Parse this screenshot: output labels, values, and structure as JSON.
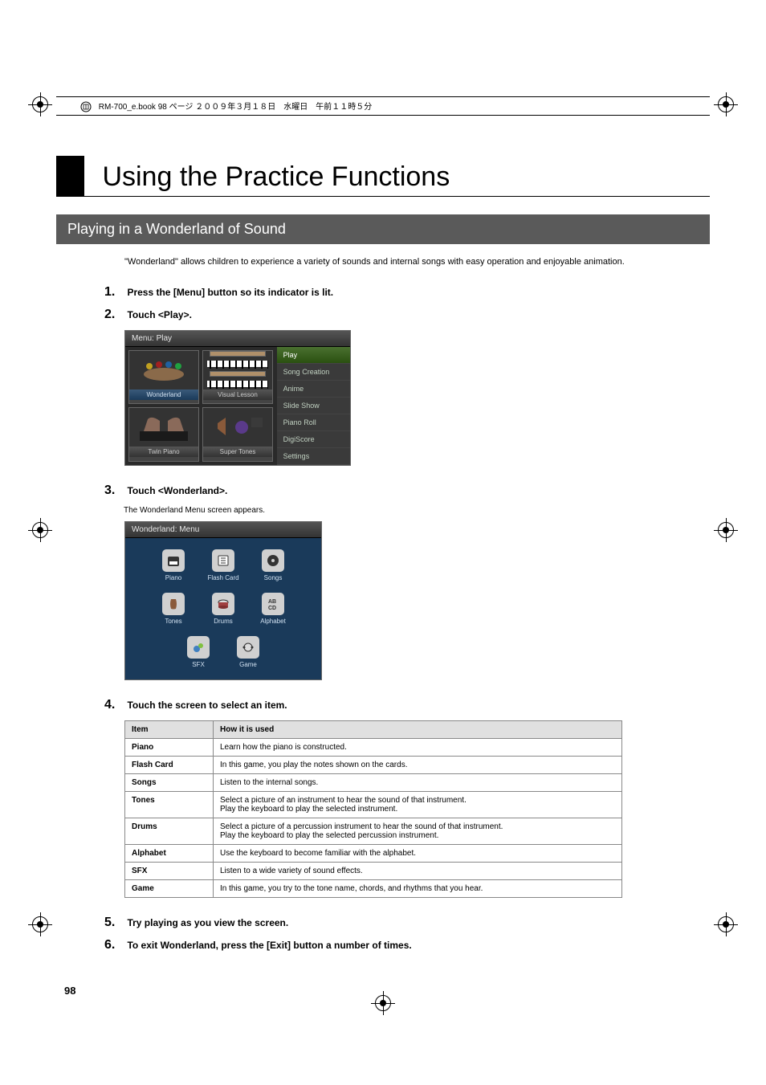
{
  "header": {
    "text": "RM-700_e.book  98 ページ  ２００９年３月１８日　水曜日　午前１１時５分"
  },
  "title": "Using the Practice Functions",
  "section": "Playing in a Wonderland of Sound",
  "intro": "\"Wonderland\" allows children to experience a variety of sounds and internal songs with easy operation and enjoyable animation.",
  "steps": [
    {
      "num": "1.",
      "text": "Press the [Menu] button so its indicator is lit."
    },
    {
      "num": "2.",
      "text": "Touch <Play>."
    },
    {
      "num": "3.",
      "text": "Touch <Wonderland>.",
      "sub": "The Wonderland Menu screen appears."
    },
    {
      "num": "4.",
      "text": "Touch the screen to select an item."
    },
    {
      "num": "5.",
      "text": "Try playing as you view the screen."
    },
    {
      "num": "6.",
      "text": "To exit Wonderland, press the [Exit] button a number of times."
    }
  ],
  "menu_play": {
    "title": "Menu: Play",
    "tiles": [
      {
        "label": "Wonderland",
        "class": "blue"
      },
      {
        "label": "Visual Lesson",
        "class": "grey"
      },
      {
        "label": "Twin Piano",
        "class": "grey"
      },
      {
        "label": "Super Tones",
        "class": "grey"
      }
    ],
    "sidebar": [
      {
        "label": "Play",
        "selected": true
      },
      {
        "label": "Song Creation",
        "selected": false
      },
      {
        "label": "Anime",
        "selected": false
      },
      {
        "label": "Slide Show",
        "selected": false
      },
      {
        "label": "Piano Roll",
        "selected": false
      },
      {
        "label": "DigiScore",
        "selected": false
      },
      {
        "label": "Settings",
        "selected": false
      }
    ]
  },
  "wonderland": {
    "title": "Wonderland: Menu",
    "items": [
      "Piano",
      "Flash Card",
      "Songs",
      "Tones",
      "Drums",
      "Alphabet",
      "SFX",
      "Game"
    ]
  },
  "table": {
    "headers": [
      "Item",
      "How it is used"
    ],
    "rows": [
      [
        "Piano",
        "Learn how the piano is constructed."
      ],
      [
        "Flash Card",
        "In this game, you play the notes shown on the cards."
      ],
      [
        "Songs",
        "Listen to the internal songs."
      ],
      [
        "Tones",
        "Select a picture of an instrument to hear the sound of that instrument.\nPlay the keyboard to play the selected instrument."
      ],
      [
        "Drums",
        "Select a picture of a percussion instrument to hear the sound of that instrument.\nPlay the keyboard to play the selected percussion instrument."
      ],
      [
        "Alphabet",
        "Use the keyboard to become familiar with the alphabet."
      ],
      [
        "SFX",
        "Listen to a wide variety of sound effects."
      ],
      [
        "Game",
        "In this game, you try to the tone name, chords, and rhythms that you hear."
      ]
    ]
  },
  "page_number": "98",
  "colors": {
    "section_bg": "#5a5a5a",
    "menu_bg": "#2a2a2a",
    "wonderland_bg": "#1a3a5a",
    "table_border": "#888888",
    "table_header_bg": "#e0e0e0"
  }
}
